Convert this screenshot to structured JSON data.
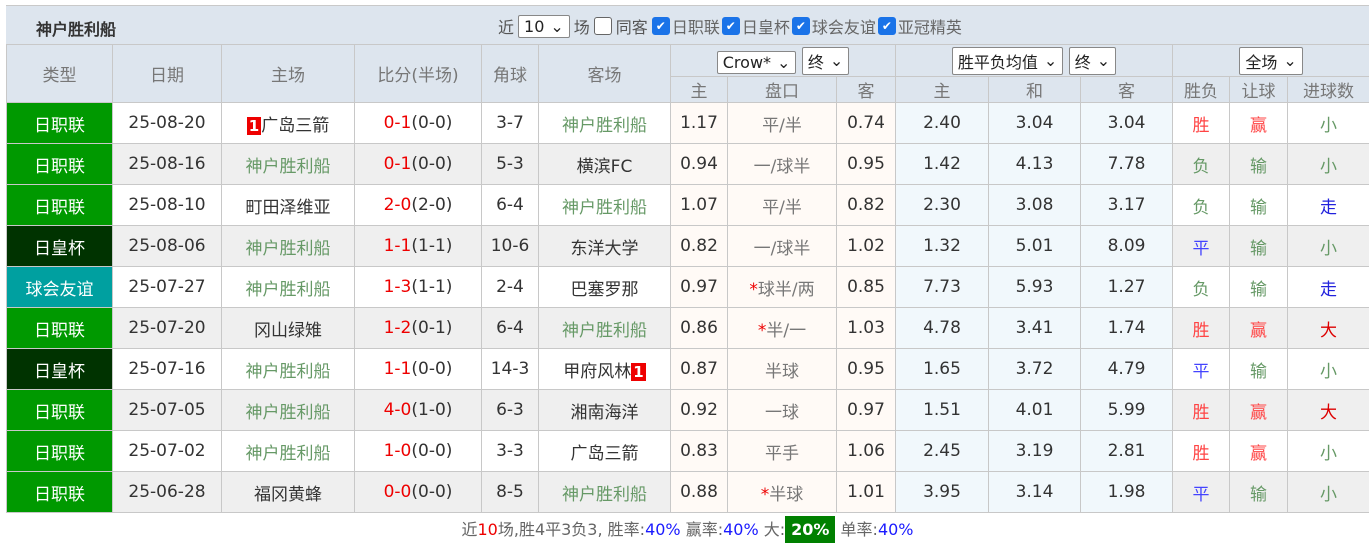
{
  "title": "神户胜利船",
  "filters": {
    "recent_label": "近",
    "recent_value": "10",
    "recent_unit": "场",
    "same_label": "同客",
    "competitions": [
      {
        "label": "日职联",
        "checked": true
      },
      {
        "label": "日皇杯",
        "checked": true
      },
      {
        "label": "球会友谊",
        "checked": true
      },
      {
        "label": "亚冠精英",
        "checked": true
      }
    ]
  },
  "headers": {
    "type": "类型",
    "date": "日期",
    "home": "主场",
    "score": "比分(半场)",
    "corner": "角球",
    "away": "客场",
    "company_select": "Crow*",
    "odds_time_select": "终",
    "euro_select": "胜平负均值",
    "euro_time_select": "终",
    "period_select": "全场",
    "hc_home": "主",
    "hc_line": "盘口",
    "hc_away": "客",
    "eu_home": "主",
    "eu_draw": "和",
    "eu_away": "客",
    "result": "胜负",
    "handicap_result": "让球",
    "goals": "进球数"
  },
  "colors": {
    "日职联": "#009900",
    "日皇杯": "#003300",
    "球会友谊": "#00a0a0",
    "win": "#ff4444",
    "loss": "#669966",
    "draw": "#4444ff",
    "big": "#dd0000",
    "small": "#669966",
    "push": "#2222dd"
  },
  "rows": [
    {
      "type": "日职联",
      "date": "25-08-20",
      "home": "广岛三箭",
      "home_badge": "1",
      "score": "0-1",
      "half": "(0-0)",
      "corner": "3-7",
      "away": "神户胜利船",
      "hh": "1.17",
      "line": "平/半",
      "ha": "0.74",
      "e1": "2.40",
      "ex": "3.04",
      "e2": "3.04",
      "res": "胜",
      "hres": "赢",
      "goals": "小"
    },
    {
      "type": "日职联",
      "date": "25-08-16",
      "home": "神户胜利船",
      "score": "0-1",
      "half": "(0-0)",
      "corner": "5-3",
      "away": "横滨FC",
      "hh": "0.94",
      "line": "一/球半",
      "ha": "0.95",
      "e1": "1.42",
      "ex": "4.13",
      "e2": "7.78",
      "res": "负",
      "hres": "输",
      "goals": "小"
    },
    {
      "type": "日职联",
      "date": "25-08-10",
      "home": "町田泽维亚",
      "score": "2-0",
      "half": "(2-0)",
      "corner": "6-4",
      "away": "神户胜利船",
      "hh": "1.07",
      "line": "平/半",
      "ha": "0.82",
      "e1": "2.30",
      "ex": "3.08",
      "e2": "3.17",
      "res": "负",
      "hres": "输",
      "goals": "走"
    },
    {
      "type": "日皇杯",
      "date": "25-08-06",
      "home": "神户胜利船",
      "score": "1-1",
      "half": "(1-1)",
      "corner": "10-6",
      "away": "东洋大学",
      "hh": "0.82",
      "line": "一/球半",
      "ha": "1.02",
      "e1": "1.32",
      "ex": "5.01",
      "e2": "8.09",
      "res": "平",
      "hres": "输",
      "goals": "小"
    },
    {
      "type": "球会友谊",
      "date": "25-07-27",
      "home": "神户胜利船",
      "score": "1-3",
      "half": "(1-1)",
      "corner": "2-4",
      "away": "巴塞罗那",
      "hh": "0.97",
      "line_star": "*",
      "line": "球半/两",
      "ha": "0.85",
      "e1": "7.73",
      "ex": "5.93",
      "e2": "1.27",
      "res": "负",
      "hres": "输",
      "goals": "走"
    },
    {
      "type": "日职联",
      "date": "25-07-20",
      "home": "冈山绿雉",
      "score": "1-2",
      "half": "(0-1)",
      "corner": "6-4",
      "away": "神户胜利船",
      "hh": "0.86",
      "line_star": "*",
      "line": "半/一",
      "ha": "1.03",
      "e1": "4.78",
      "ex": "3.41",
      "e2": "1.74",
      "res": "胜",
      "hres": "赢",
      "goals": "大"
    },
    {
      "type": "日皇杯",
      "date": "25-07-16",
      "home": "神户胜利船",
      "score": "1-1",
      "half": "(0-0)",
      "corner": "14-3",
      "away": "甲府风林",
      "away_badge": "1",
      "hh": "0.87",
      "line": "半球",
      "ha": "0.95",
      "e1": "1.65",
      "ex": "3.72",
      "e2": "4.79",
      "res": "平",
      "hres": "输",
      "goals": "小"
    },
    {
      "type": "日职联",
      "date": "25-07-05",
      "home": "神户胜利船",
      "score": "4-0",
      "half": "(1-0)",
      "corner": "6-3",
      "away": "湘南海洋",
      "hh": "0.92",
      "line": "一球",
      "ha": "0.97",
      "e1": "1.51",
      "ex": "4.01",
      "e2": "5.99",
      "res": "胜",
      "hres": "赢",
      "goals": "大"
    },
    {
      "type": "日职联",
      "date": "25-07-02",
      "home": "神户胜利船",
      "score": "1-0",
      "half": "(0-0)",
      "corner": "3-3",
      "away": "广岛三箭",
      "hh": "0.83",
      "line": "平手",
      "ha": "1.06",
      "e1": "2.45",
      "ex": "3.19",
      "e2": "2.81",
      "res": "胜",
      "hres": "赢",
      "goals": "小"
    },
    {
      "type": "日职联",
      "date": "25-06-28",
      "home": "福冈黄蜂",
      "score": "0-0",
      "half": "(0-0)",
      "corner": "8-5",
      "away": "神户胜利船",
      "hh": "0.88",
      "line_star": "*",
      "line": "半球",
      "ha": "1.01",
      "e1": "3.95",
      "ex": "3.14",
      "e2": "1.98",
      "res": "平",
      "hres": "输",
      "goals": "小"
    }
  ],
  "summary": {
    "p1": "近",
    "n": "10",
    "p2": "场,胜4平3负3, 胜率:",
    "win_rate": "40%",
    "p3": " 赢率:",
    "hc_rate": "40%",
    "p4": " 大:",
    "big_rate": "20%",
    "p5": " 单率:",
    "odd_rate": "40%"
  }
}
